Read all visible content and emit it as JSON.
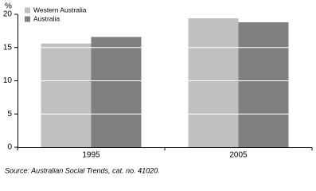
{
  "chart_data": {
    "type": "bar",
    "y_axis_label": "%",
    "categories": [
      "1995",
      "2005"
    ],
    "series": [
      {
        "name": "Western Australia",
        "color": "#c0c0c0",
        "values": [
          15.6,
          19.4
        ]
      },
      {
        "name": "Australia",
        "color": "#808080",
        "values": [
          16.6,
          18.8
        ]
      }
    ],
    "ylim": [
      0,
      20
    ],
    "yticks": [
      0,
      5,
      10,
      15,
      20
    ],
    "grid": true,
    "source": "Source: Australian Social Trends, cat. no. 41020."
  }
}
